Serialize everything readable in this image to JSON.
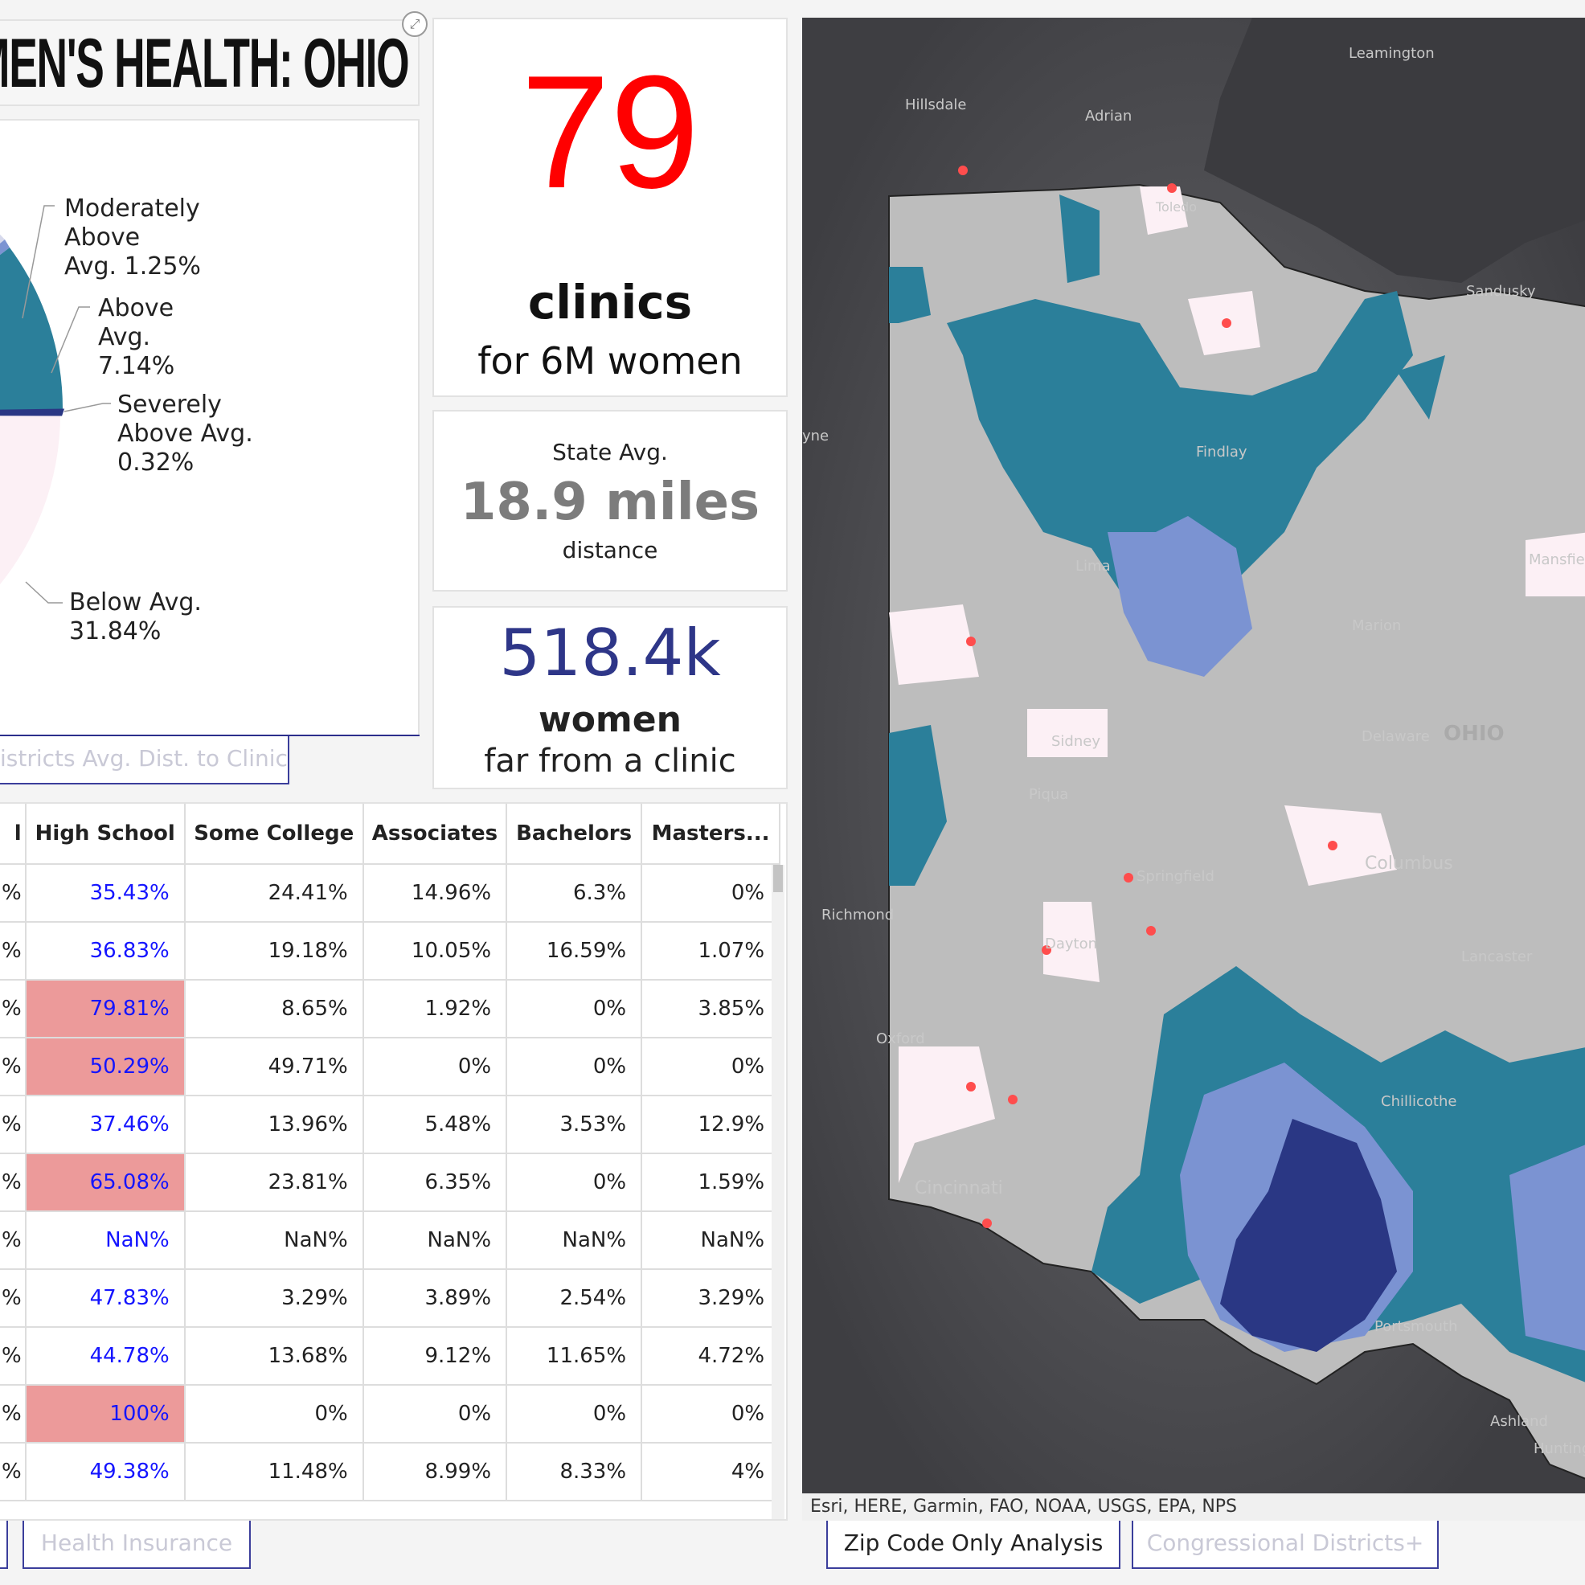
{
  "header": {
    "title": "OMEN'S HEALTH: OHIO",
    "expand_icon": "expand-icon"
  },
  "pie": {
    "slices": [
      {
        "label": "Moderately\nAbove\nAvg. 1.25%",
        "color": "#d6d9ec"
      },
      {
        "label": "Above\nAvg.\n7.14%",
        "color": "#7b93d2"
      },
      {
        "label": "Severely\nAbove Avg.\n0.32%",
        "color": "#2a3784"
      },
      {
        "label": "Below Avg.\n31.84%",
        "color": "#fcf0f5"
      }
    ],
    "extra_colors": {
      "teal": "#2b7f9a",
      "gray": "#c4c4c4"
    }
  },
  "tabs": {
    "districts_avg": "istricts Avg. Dist. to Clinics",
    "health_insurance": "Health Insurance",
    "zip_code": "Zip Code Only Analysis",
    "congressional": "Congressional Districts+"
  },
  "stats": {
    "clinics_count": "79",
    "clinics_label": "clinics",
    "clinics_sub": "for 6M women",
    "avg_caption": "State Avg.",
    "avg_value": "18.9 miles",
    "avg_sub": "distance",
    "women_value": "518.4k",
    "women_label": "women",
    "women_sub": "far from a clinic"
  },
  "table": {
    "columns": [
      "l",
      "High School",
      "Some College",
      "Associates",
      "Bachelors",
      "Masters..."
    ],
    "rows": [
      {
        "c0": "%",
        "hs": "35.43%",
        "hl": false,
        "sc": "24.41%",
        "as": "14.96%",
        "ba": "6.3%",
        "ma": "0%"
      },
      {
        "c0": "%",
        "hs": "36.83%",
        "hl": false,
        "sc": "19.18%",
        "as": "10.05%",
        "ba": "16.59%",
        "ma": "1.07%"
      },
      {
        "c0": "%",
        "hs": "79.81%",
        "hl": true,
        "sc": "8.65%",
        "as": "1.92%",
        "ba": "0%",
        "ma": "3.85%"
      },
      {
        "c0": "%",
        "hs": "50.29%",
        "hl": true,
        "sc": "49.71%",
        "as": "0%",
        "ba": "0%",
        "ma": "0%"
      },
      {
        "c0": "%",
        "hs": "37.46%",
        "hl": false,
        "sc": "13.96%",
        "as": "5.48%",
        "ba": "3.53%",
        "ma": "12.9%"
      },
      {
        "c0": "%",
        "hs": "65.08%",
        "hl": true,
        "sc": "23.81%",
        "as": "6.35%",
        "ba": "0%",
        "ma": "1.59%"
      },
      {
        "c0": "%",
        "hs": "NaN%",
        "hl": false,
        "sc": "NaN%",
        "as": "NaN%",
        "ba": "NaN%",
        "ma": "NaN%"
      },
      {
        "c0": "%",
        "hs": "47.83%",
        "hl": false,
        "sc": "3.29%",
        "as": "3.89%",
        "ba": "2.54%",
        "ma": "3.29%"
      },
      {
        "c0": "%",
        "hs": "44.78%",
        "hl": false,
        "sc": "13.68%",
        "as": "9.12%",
        "ba": "11.65%",
        "ma": "4.72%"
      },
      {
        "c0": "%",
        "hs": "100%",
        "hl": true,
        "sc": "0%",
        "as": "0%",
        "ba": "0%",
        "ma": "0%"
      },
      {
        "c0": "%",
        "hs": "49.38%",
        "hl": false,
        "sc": "11.48%",
        "as": "8.99%",
        "ba": "8.33%",
        "ma": "4%"
      }
    ]
  },
  "map": {
    "places": [
      "Leamington",
      "Hillsdale",
      "Adrian",
      "Sandusky",
      "yne",
      "Findlay",
      "Lima",
      "Marion",
      "Mansfield",
      "Sidney",
      "Delaware",
      "OHIO",
      "Piqua",
      "Springfield",
      "Columbus",
      "Richmond",
      "Dayton",
      "Lancaster",
      "Oxford",
      "Chillicothe",
      "Cincinnati",
      "Portsmouth",
      "Ashland",
      "Toledo",
      "Huntington"
    ],
    "attribution": "Esri, HERE, Garmin, FAO, NOAA, USGS, EPA, NPS",
    "colors": {
      "background": "#4f4f52",
      "land": "#bdbdbd",
      "teal": "#2b7f9a",
      "light_blue": "#7b93d2",
      "navy": "#2a3784",
      "pink": "#fcf0f5",
      "clinic": "#ff4d4d"
    }
  }
}
